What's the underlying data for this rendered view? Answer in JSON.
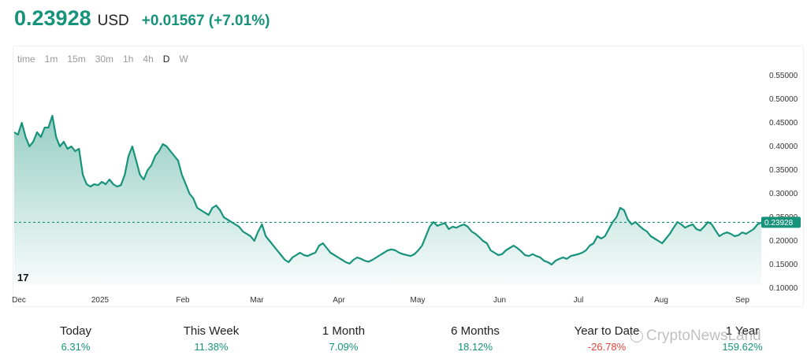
{
  "header": {
    "price": "0.23928",
    "unit": "USD",
    "change": "+0.01567 (+7.01%)"
  },
  "timeframes": [
    "time",
    "1m",
    "15m",
    "30m",
    "1h",
    "4h",
    "D",
    "W"
  ],
  "active_timeframe": "D",
  "stats": [
    {
      "label": "Today",
      "value": "6.31%",
      "tone": "pos"
    },
    {
      "label": "This Week",
      "value": "11.38%",
      "tone": "pos"
    },
    {
      "label": "1 Month",
      "value": "7.09%",
      "tone": "pos"
    },
    {
      "label": "6 Months",
      "value": "18.12%",
      "tone": "pos"
    },
    {
      "label": "Year to Date",
      "value": "-26.78%",
      "tone": "neg"
    },
    {
      "label": "1 Year",
      "value": "159.62%",
      "tone": "pos"
    }
  ],
  "watermark": "CryptoNewsLand",
  "colors": {
    "line": "#16937a",
    "negative": "#e0463c"
  },
  "chart_data": {
    "type": "area",
    "x_tick_labels": [
      "Dec",
      "2025",
      "Feb",
      "Mar",
      "Apr",
      "May",
      "Jun",
      "Jul",
      "Aug",
      "Sep"
    ],
    "y_tick_labels": [
      "0.55000",
      "0.50000",
      "0.45000",
      "0.40000",
      "0.35000",
      "0.30000",
      "0.25000",
      "0.20000",
      "0.15000",
      "0.10000"
    ],
    "ylim": [
      0.1,
      0.55
    ],
    "last_price_label": "0.23928",
    "last_price": 0.23928,
    "series": [
      {
        "values": [
          0.43,
          0.425,
          0.45,
          0.42,
          0.4,
          0.41,
          0.43,
          0.42,
          0.44,
          0.44,
          0.465,
          0.42,
          0.4,
          0.41,
          0.395,
          0.4,
          0.39,
          0.395,
          0.34,
          0.32,
          0.315,
          0.32,
          0.318,
          0.325,
          0.32,
          0.33,
          0.32,
          0.315,
          0.318,
          0.34,
          0.38,
          0.4,
          0.37,
          0.34,
          0.33,
          0.35,
          0.36,
          0.38,
          0.39,
          0.405,
          0.4,
          0.39,
          0.38,
          0.37,
          0.34,
          0.32,
          0.3,
          0.29,
          0.27,
          0.265,
          0.26,
          0.255,
          0.27,
          0.275,
          0.265,
          0.25,
          0.245,
          0.24,
          0.235,
          0.23,
          0.22,
          0.215,
          0.21,
          0.2,
          0.22,
          0.235,
          0.21,
          0.2,
          0.19,
          0.18,
          0.17,
          0.16,
          0.155,
          0.165,
          0.17,
          0.175,
          0.17,
          0.168,
          0.172,
          0.175,
          0.19,
          0.195,
          0.185,
          0.175,
          0.17,
          0.165,
          0.16,
          0.155,
          0.152,
          0.16,
          0.165,
          0.162,
          0.158,
          0.156,
          0.16,
          0.165,
          0.17,
          0.175,
          0.18,
          0.182,
          0.18,
          0.175,
          0.172,
          0.17,
          0.168,
          0.172,
          0.18,
          0.19,
          0.21,
          0.23,
          0.24,
          0.232,
          0.235,
          0.238,
          0.225,
          0.23,
          0.228,
          0.232,
          0.235,
          0.23,
          0.22,
          0.215,
          0.208,
          0.2,
          0.195,
          0.18,
          0.175,
          0.17,
          0.172,
          0.18,
          0.185,
          0.19,
          0.185,
          0.178,
          0.17,
          0.168,
          0.172,
          0.168,
          0.165,
          0.158,
          0.155,
          0.15,
          0.158,
          0.162,
          0.165,
          0.162,
          0.168,
          0.17,
          0.172,
          0.175,
          0.18,
          0.19,
          0.195,
          0.21,
          0.205,
          0.21,
          0.225,
          0.24,
          0.25,
          0.27,
          0.265,
          0.245,
          0.235,
          0.24,
          0.232,
          0.225,
          0.22,
          0.21,
          0.205,
          0.2,
          0.195,
          0.205,
          0.215,
          0.228,
          0.24,
          0.235,
          0.228,
          0.232,
          0.235,
          0.225,
          0.222,
          0.23,
          0.24,
          0.235,
          0.222,
          0.21,
          0.215,
          0.218,
          0.215,
          0.21,
          0.212,
          0.218,
          0.215,
          0.22,
          0.225,
          0.235,
          0.239
        ]
      }
    ]
  }
}
